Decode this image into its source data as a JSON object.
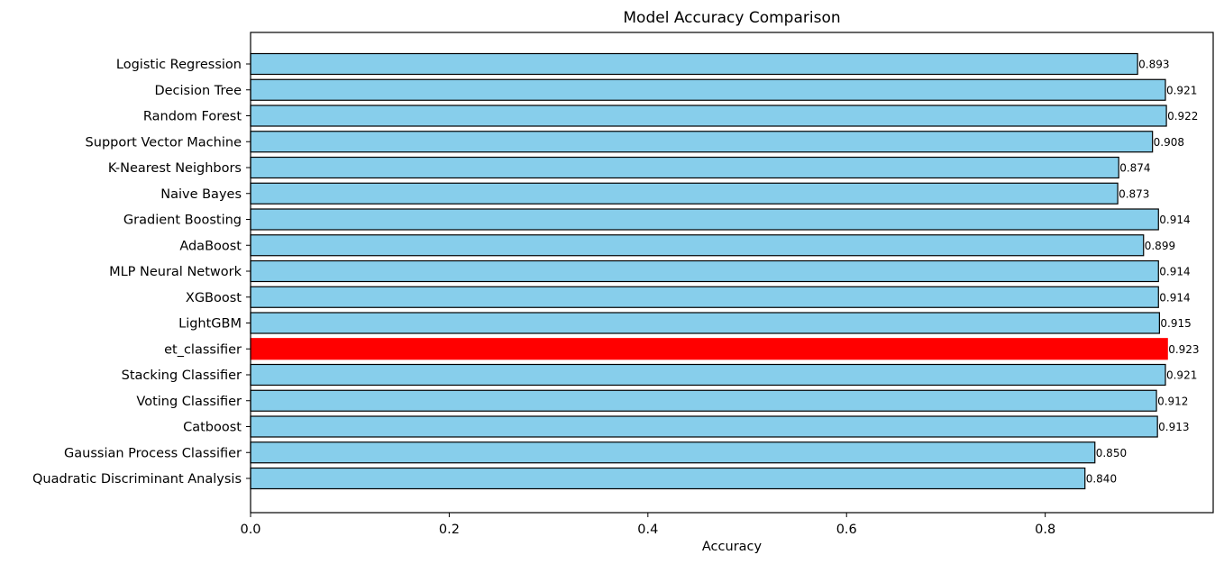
{
  "chart_data": {
    "type": "bar",
    "orientation": "horizontal",
    "title": "Model Accuracy Comparison",
    "xlabel": "Accuracy",
    "ylabel": "",
    "xlim": [
      0,
      0.9691
    ],
    "x_ticks": [
      0,
      0.2,
      0.4,
      0.6,
      0.8
    ],
    "x_tick_labels": [
      "0.0",
      "0.2",
      "0.4",
      "0.6",
      "0.8"
    ],
    "grid": false,
    "legend": "none",
    "bar_color": "#87ceeb",
    "highlight_color": "#ff0000",
    "edge_color": "#000000",
    "highlight_category": "et_classifier",
    "categories": [
      "Logistic Regression",
      "Decision Tree",
      "Random Forest",
      "Support Vector Machine",
      "K-Nearest Neighbors",
      "Naive Bayes",
      "Gradient Boosting",
      "AdaBoost",
      "MLP Neural Network",
      "XGBoost",
      "LightGBM",
      "et_classifier",
      "Stacking Classifier",
      "Voting Classifier",
      "Catboost",
      "Gaussian Process Classifier",
      "Quadratic Discriminant Analysis"
    ],
    "values": [
      0.893,
      0.921,
      0.922,
      0.908,
      0.874,
      0.873,
      0.914,
      0.899,
      0.914,
      0.914,
      0.915,
      0.923,
      0.921,
      0.912,
      0.913,
      0.85,
      0.84
    ],
    "data_labels": [
      "0.893",
      "0.921",
      "0.922",
      "0.908",
      "0.874",
      "0.873",
      "0.914",
      "0.899",
      "0.914",
      "0.914",
      "0.915",
      "0.923",
      "0.921",
      "0.912",
      "0.913",
      "0.850",
      "0.840"
    ]
  }
}
